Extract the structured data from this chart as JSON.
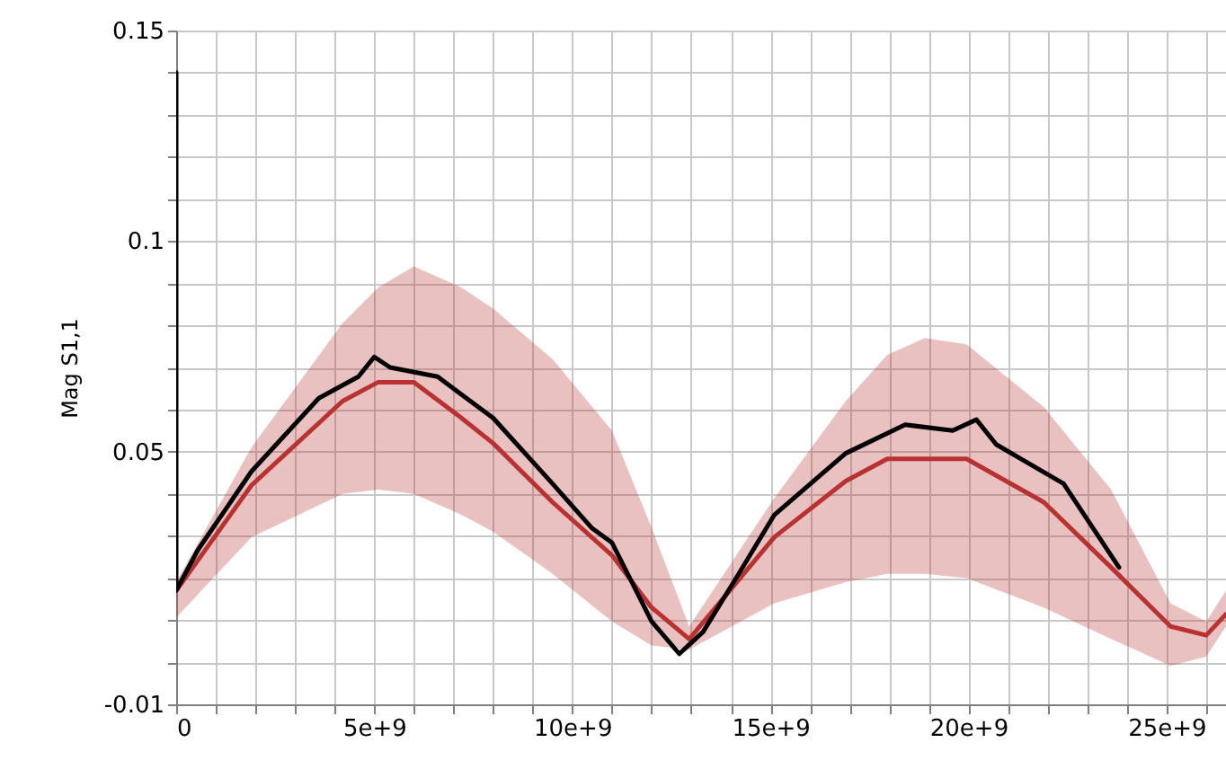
{
  "chart_data": {
    "type": "line",
    "ylabel": "Mag S1,1",
    "xlim": [
      0,
      26500000000
    ],
    "ylim": [
      -0.01,
      0.15
    ],
    "xticks": [
      0,
      {
        "value": 1000000000,
        "label": null
      },
      {
        "value": 2000000000,
        "label": null
      },
      {
        "value": 3000000000,
        "label": null
      },
      {
        "value": 4000000000,
        "label": null
      },
      {
        "value": 5000000000,
        "label": "5e+9"
      },
      {
        "value": 6000000000,
        "label": null
      },
      {
        "value": 7000000000,
        "label": null
      },
      {
        "value": 8000000000,
        "label": null
      },
      {
        "value": 9000000000,
        "label": null
      },
      {
        "value": 10000000000,
        "label": "10e+9"
      },
      {
        "value": 11000000000,
        "label": null
      },
      {
        "value": 12000000000,
        "label": null
      },
      {
        "value": 13000000000,
        "label": null
      },
      {
        "value": 14000000000,
        "label": null
      },
      {
        "value": 15000000000,
        "label": "15e+9"
      },
      {
        "value": 16000000000,
        "label": null
      },
      {
        "value": 17000000000,
        "label": null
      },
      {
        "value": 18000000000,
        "label": null
      },
      {
        "value": 19000000000,
        "label": null
      },
      {
        "value": 20000000000,
        "label": "20e+9"
      },
      {
        "value": 21000000000,
        "label": null
      },
      {
        "value": 22000000000,
        "label": null
      },
      {
        "value": 23000000000,
        "label": null
      },
      {
        "value": 24000000000,
        "label": null
      },
      {
        "value": 25000000000,
        "label": "25e+9"
      },
      {
        "value": 26000000000,
        "label": null
      }
    ],
    "yticks": [
      -0.01,
      {
        "value": 0,
        "label": null
      },
      {
        "value": 0.01,
        "label": null
      },
      {
        "value": 0.02,
        "label": null
      },
      {
        "value": 0.03,
        "label": null
      },
      {
        "value": 0.04,
        "label": null
      },
      0.05,
      {
        "value": 0.06,
        "label": null
      },
      {
        "value": 0.07,
        "label": null
      },
      {
        "value": 0.08,
        "label": null
      },
      {
        "value": 0.09,
        "label": null
      },
      0.1,
      {
        "value": 0.11,
        "label": null
      },
      {
        "value": 0.12,
        "label": null
      },
      {
        "value": 0.13,
        "label": null
      },
      {
        "value": 0.14,
        "label": null
      },
      0.15
    ],
    "grid": true,
    "line_style": "solid",
    "series": [
      {
        "color": "#b83232",
        "x": [
          0,
          1900000000,
          4200000000,
          5100000000,
          6000000000,
          7200000000,
          8000000000,
          9500000000,
          11000000000,
          12000000000,
          12950000000,
          15100000000,
          16900000000,
          17950000000,
          18900000000,
          19950000000,
          21900000000,
          23600000000,
          25100000000,
          26000000000,
          26500000000
        ],
        "values": [
          0.017,
          0.042,
          0.062,
          0.0665,
          0.0665,
          0.058,
          0.052,
          0.038,
          0.0254,
          0.013,
          0.0055,
          0.0297,
          0.043,
          0.0483,
          0.0483,
          0.0483,
          0.038,
          0.0225,
          0.0085,
          0.0064,
          0.0114
        ],
        "lower": [
          0.0106,
          0.0297,
          0.04,
          0.041,
          0.04,
          0.035,
          0.031,
          0.021,
          0.0097,
          0.004,
          0.003,
          0.014,
          0.019,
          0.021,
          0.021,
          0.02,
          0.013,
          0.0055,
          -0.0008,
          0.0013,
          0.0085
        ],
        "upper": [
          0.019,
          0.051,
          0.0805,
          0.089,
          0.094,
          0.089,
          0.084,
          0.072,
          0.055,
          0.032,
          0.0085,
          0.039,
          0.062,
          0.073,
          0.077,
          0.0755,
          0.0606,
          0.041,
          0.014,
          0.0097,
          0.017
        ]
      },
      {
        "color": "#000000",
        "x": [
          0,
          0,
          550000000,
          1900000000,
          3600000000,
          4600000000,
          5000000000,
          5400000000,
          6600000000,
          8000000000,
          9500000000,
          10500000000,
          11000000000,
          12000000000,
          12700000000,
          13300000000,
          14200000000,
          15100000000,
          16900000000,
          18400000000,
          19600000000,
          20200000000,
          20700000000,
          22400000000,
          23800000000
        ],
        "values": [
          0.14,
          0.017,
          0.0267,
          0.0453,
          0.0627,
          0.0678,
          0.0725,
          0.07,
          0.0678,
          0.058,
          0.0424,
          0.0318,
          0.0284,
          0.0097,
          0.002,
          0.0072,
          0.021,
          0.035,
          0.0496,
          0.0564,
          0.055,
          0.0576,
          0.0517,
          0.0424,
          0.0225
        ]
      }
    ]
  }
}
